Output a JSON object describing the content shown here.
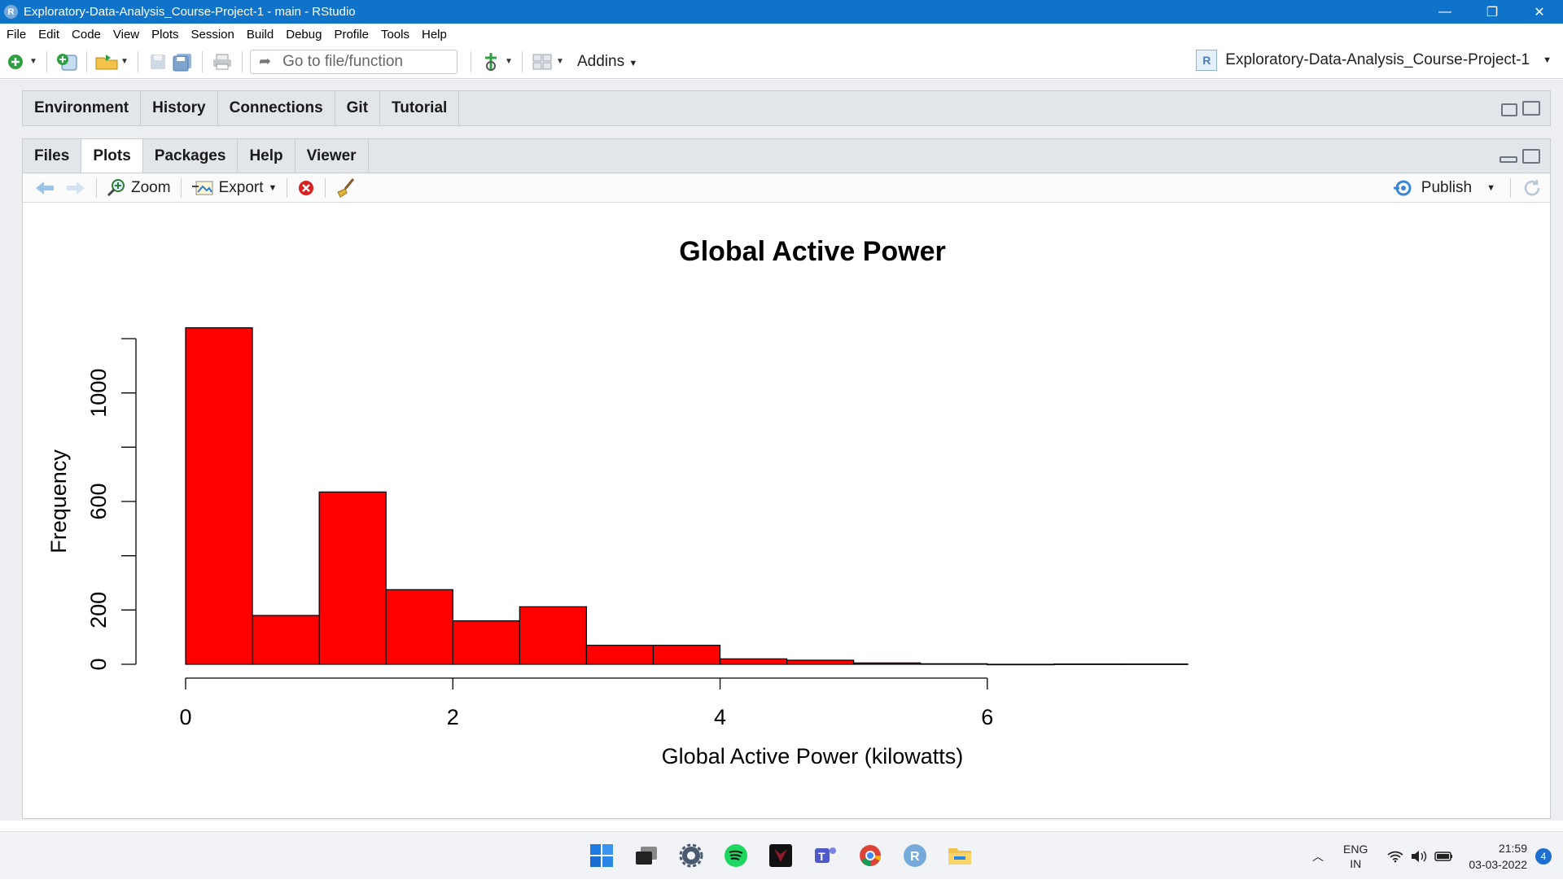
{
  "window": {
    "app_icon_letter": "R",
    "title": "Exploratory-Data-Analysis_Course-Project-1 - main - RStudio",
    "minimize": "—",
    "restore": "❐",
    "close": "✕"
  },
  "menu": [
    "File",
    "Edit",
    "Code",
    "View",
    "Plots",
    "Session",
    "Build",
    "Debug",
    "Profile",
    "Tools",
    "Help"
  ],
  "toolbar": {
    "goto_placeholder": "Go to file/function",
    "addins_label": "Addins",
    "project_icon_letter": "R",
    "project_name": "Exploratory-Data-Analysis_Course-Project-1"
  },
  "env_pane": {
    "tabs": [
      "Environment",
      "History",
      "Connections",
      "Git",
      "Tutorial"
    ]
  },
  "plots_pane": {
    "tabs": [
      "Files",
      "Plots",
      "Packages",
      "Help",
      "Viewer"
    ],
    "active_tab": "Plots",
    "zoom_label": "Zoom",
    "export_label": "Export",
    "publish_label": "Publish"
  },
  "chart_data": {
    "type": "bar",
    "title": "Global Active Power",
    "xlabel": "Global Active Power (kilowatts)",
    "ylabel": "Frequency",
    "bin_edges": [
      0,
      0.5,
      1,
      1.5,
      2,
      2.5,
      3,
      3.5,
      4,
      4.5,
      5,
      5.5,
      6,
      6.5,
      7,
      7.5
    ],
    "values": [
      1240,
      180,
      635,
      275,
      160,
      212,
      70,
      70,
      20,
      15,
      5,
      2,
      0,
      1,
      1
    ],
    "xlim": [
      0,
      7.5
    ],
    "ylim": [
      0,
      1200
    ],
    "x_ticks": [
      0,
      2,
      4,
      6
    ],
    "x_tick_labels": [
      "0",
      "2",
      "4",
      "6"
    ],
    "y_ticks": [
      0,
      200,
      400,
      600,
      800,
      1000,
      1200
    ],
    "y_tick_labels": [
      "0",
      "200",
      "",
      "600",
      "",
      "1000",
      ""
    ],
    "bar_color": "#ff0000",
    "bar_edge_color": "#000000"
  },
  "taskbar": {
    "lang_top": "ENG",
    "lang_bottom": "IN",
    "time": "21:59",
    "date": "03-03-2022",
    "notifications": "4"
  }
}
